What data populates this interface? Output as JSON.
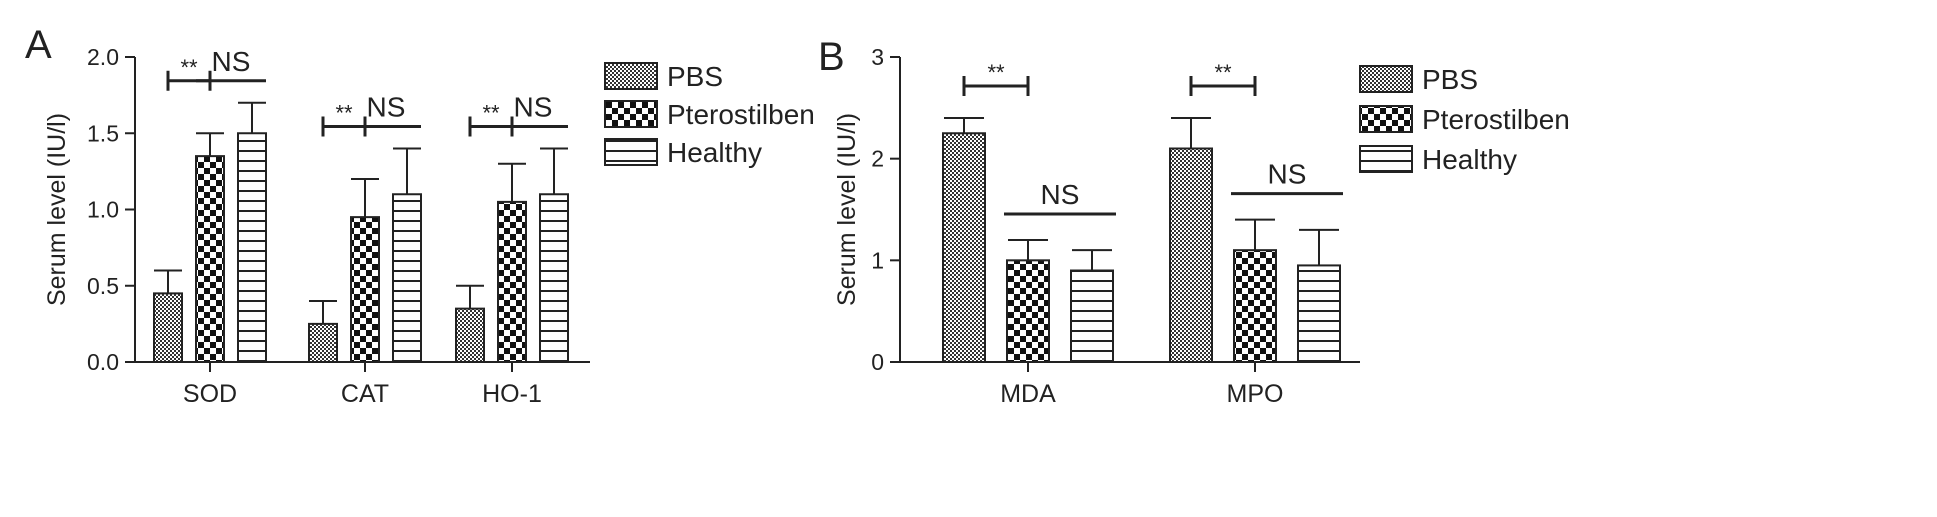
{
  "chart_data": [
    {
      "panel": "A",
      "type": "bar",
      "ylabel": "Serum level (IU/l)",
      "ylim": [
        0,
        2.0
      ],
      "yticks": [
        "0.0",
        "0.5",
        "1.0",
        "1.5",
        "2.0"
      ],
      "categories": [
        "SOD",
        "CAT",
        "HO-1"
      ],
      "series": [
        {
          "name": "PBS",
          "values": [
            0.45,
            0.25,
            0.35
          ],
          "errors": [
            0.15,
            0.15,
            0.15
          ]
        },
        {
          "name": "Pterostilben",
          "values": [
            1.35,
            0.95,
            1.05
          ],
          "errors": [
            0.15,
            0.25,
            0.25
          ]
        },
        {
          "name": "Healthy",
          "values": [
            1.5,
            1.1,
            1.1
          ],
          "errors": [
            0.2,
            0.3,
            0.3
          ]
        }
      ],
      "annotations": [
        {
          "category": "SOD",
          "between": [
            "PBS",
            "Pterostilben"
          ],
          "label": "**"
        },
        {
          "category": "SOD",
          "between": [
            "Pterostilben",
            "Healthy"
          ],
          "label": "NS"
        },
        {
          "category": "CAT",
          "between": [
            "PBS",
            "Pterostilben"
          ],
          "label": "**"
        },
        {
          "category": "CAT",
          "between": [
            "Pterostilben",
            "Healthy"
          ],
          "label": "NS"
        },
        {
          "category": "HO-1",
          "between": [
            "PBS",
            "Pterostilben"
          ],
          "label": "**"
        },
        {
          "category": "HO-1",
          "between": [
            "Pterostilben",
            "Healthy"
          ],
          "label": "NS"
        }
      ],
      "legend": "right"
    },
    {
      "panel": "B",
      "type": "bar",
      "ylabel": "Serum level (IU/l)",
      "ylim": [
        0,
        3
      ],
      "yticks": [
        "0",
        "1",
        "2",
        "3"
      ],
      "categories": [
        "MDA",
        "MPO"
      ],
      "series": [
        {
          "name": "PBS",
          "values": [
            2.25,
            2.1
          ],
          "errors": [
            0.15,
            0.3
          ]
        },
        {
          "name": "Pterostilben",
          "values": [
            1.0,
            1.1
          ],
          "errors": [
            0.2,
            0.3
          ]
        },
        {
          "name": "Healthy",
          "values": [
            0.9,
            0.95
          ],
          "errors": [
            0.2,
            0.35
          ]
        }
      ],
      "annotations": [
        {
          "category": "MDA",
          "between": [
            "PBS",
            "Pterostilben"
          ],
          "label": "**"
        },
        {
          "category": "MDA",
          "between": [
            "Pterostilben",
            "Healthy"
          ],
          "label": "NS"
        },
        {
          "category": "MPO",
          "between": [
            "PBS",
            "Pterostilben"
          ],
          "label": "**"
        },
        {
          "category": "MPO",
          "between": [
            "Pterostilben",
            "Healthy"
          ],
          "label": "NS"
        }
      ],
      "legend": "right"
    }
  ]
}
